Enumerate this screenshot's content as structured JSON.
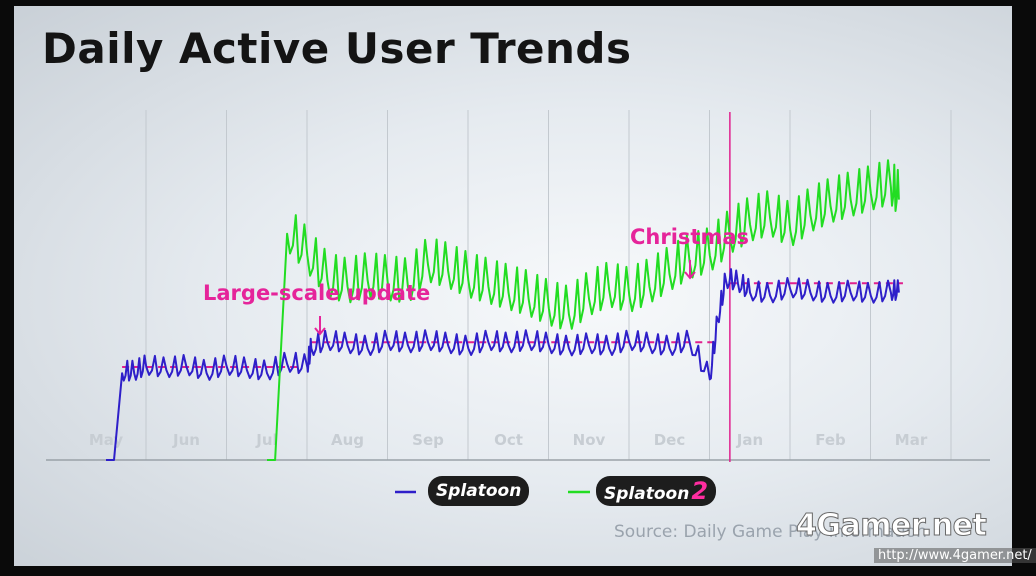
{
  "chart_data": {
    "type": "line",
    "title": "Daily Active User Trends",
    "xlabel": "",
    "ylabel": "",
    "categories": [
      "May",
      "Jun",
      "Jul",
      "Aug",
      "Sep",
      "Oct",
      "Nov",
      "Dec",
      "Jan",
      "Feb",
      "Mar"
    ],
    "x_range": [
      0,
      10
    ],
    "ylim": [
      0,
      100
    ],
    "grid": true,
    "legend": "bottom-center",
    "series": [
      {
        "name": "Splatoon",
        "color": "#2e1fc9",
        "x": [
          0,
          0.1,
          0.2,
          0.35,
          0.5,
          0.75,
          1.0,
          1.25,
          1.5,
          1.75,
          2.0,
          2.25,
          2.5,
          2.55,
          2.75,
          3.0,
          3.25,
          3.5,
          3.75,
          4.0,
          4.25,
          4.5,
          4.75,
          5.0,
          5.25,
          5.5,
          5.75,
          6.0,
          6.25,
          6.5,
          6.75,
          7.0,
          7.25,
          7.5,
          7.6,
          7.7,
          7.85,
          8.0,
          8.25,
          8.5,
          8.75,
          9.0,
          9.25,
          9.5,
          9.75,
          9.85
        ],
        "values": [
          0,
          0,
          28,
          28,
          30,
          29,
          30,
          28,
          30,
          29,
          28,
          31,
          30,
          36,
          38,
          37,
          36,
          38,
          37,
          38,
          37,
          36,
          38,
          37,
          38,
          37,
          36,
          37,
          36,
          38,
          37,
          36,
          38,
          26,
          45,
          58,
          57,
          54,
          53,
          55,
          54,
          53,
          54,
          53,
          54,
          54
        ],
        "reference_level": [
          {
            "x_start": 0.2,
            "x_end": 2.4,
            "value": 30
          },
          {
            "x_start": 2.55,
            "x_end": 7.6,
            "value": 38
          },
          {
            "x_start": 7.75,
            "x_end": 9.9,
            "value": 57
          }
        ]
      },
      {
        "name": "Splatoon 2",
        "color": "#22dd22",
        "x": [
          2.0,
          2.1,
          2.25,
          2.5,
          2.75,
          3.0,
          3.25,
          3.5,
          3.75,
          4.0,
          4.25,
          4.5,
          4.75,
          5.0,
          5.25,
          5.5,
          5.75,
          6.0,
          6.25,
          6.5,
          6.75,
          7.0,
          7.25,
          7.5,
          7.75,
          8.0,
          8.25,
          8.5,
          8.75,
          9.0,
          9.25,
          9.5,
          9.75,
          9.85
        ],
        "values": [
          0,
          0,
          73,
          66,
          58,
          56,
          58,
          57,
          56,
          63,
          61,
          58,
          56,
          54,
          52,
          49,
          47,
          52,
          55,
          53,
          56,
          60,
          64,
          66,
          72,
          76,
          78,
          74,
          79,
          82,
          84,
          86,
          88,
          84
        ]
      }
    ],
    "annotations": [
      {
        "text": "Large-scale update",
        "x": 2.6,
        "color": "#e5249a"
      },
      {
        "text": "Christmas",
        "x": 7.7,
        "color": "#e5249a"
      }
    ],
    "vertical_marker": {
      "x": 7.75,
      "color": "#e0208e"
    }
  },
  "legend": {
    "splatoon_logo_text": "Splatoon",
    "splatoon2_logo_text": "Splatoon",
    "splatoon2_logo_number": "2"
  },
  "source": "Source: Daily Game Play information",
  "watermark": {
    "brand": "4Gamer.net",
    "url": "http://www.4gamer.net/"
  }
}
